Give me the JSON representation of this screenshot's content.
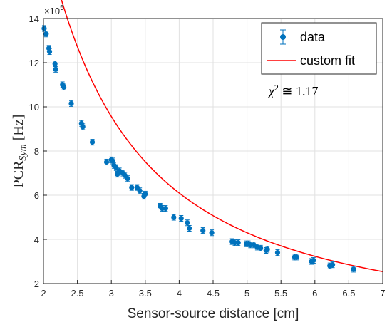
{
  "chart_data": {
    "type": "scatter",
    "xlabel": "Sensor-source distance [cm]",
    "ylabel_main": "PCR",
    "ylabel_sub": "Sym",
    "ylabel_unit": " [Hz]",
    "y_exponent": "×10",
    "y_exponent_power": "5",
    "xlim": [
      2,
      7
    ],
    "ylim": [
      2,
      14
    ],
    "xticks": [
      "2",
      "2.5",
      "3",
      "3.5",
      "4",
      "4.5",
      "5",
      "5.5",
      "6",
      "6.5",
      "7"
    ],
    "yticks": [
      "2",
      "4",
      "6",
      "8",
      "10",
      "12",
      "14"
    ],
    "grid": true,
    "legend_position": "top-right",
    "annotation_chi": "χ̄",
    "annotation_rest": " ≅  1.17",
    "annotation_power": "2",
    "colors": {
      "data": "#0072BD",
      "fit": "#ff0000",
      "grid": "#e1e1e1",
      "axis": "#262626"
    },
    "series": [
      {
        "name": "data",
        "kind": "errorbar",
        "points": [
          [
            2.01,
            13.55
          ],
          [
            2.04,
            13.3
          ],
          [
            2.08,
            12.65
          ],
          [
            2.09,
            12.5
          ],
          [
            2.17,
            11.95
          ],
          [
            2.18,
            11.7
          ],
          [
            2.28,
            11.0
          ],
          [
            2.3,
            10.9
          ],
          [
            2.41,
            10.15
          ],
          [
            2.56,
            9.25
          ],
          [
            2.58,
            9.1
          ],
          [
            2.72,
            8.4
          ],
          [
            2.93,
            7.5
          ],
          [
            3.0,
            7.6
          ],
          [
            3.02,
            7.55
          ],
          [
            3.04,
            7.35
          ],
          [
            3.07,
            7.25
          ],
          [
            3.09,
            6.95
          ],
          [
            3.12,
            7.1
          ],
          [
            3.17,
            7.0
          ],
          [
            3.2,
            6.9
          ],
          [
            3.24,
            6.75
          ],
          [
            3.3,
            6.35
          ],
          [
            3.38,
            6.35
          ],
          [
            3.42,
            6.2
          ],
          [
            3.48,
            5.95
          ],
          [
            3.5,
            6.05
          ],
          [
            3.72,
            5.5
          ],
          [
            3.75,
            5.4
          ],
          [
            3.8,
            5.4
          ],
          [
            3.92,
            5.0
          ],
          [
            4.03,
            4.95
          ],
          [
            4.12,
            4.75
          ],
          [
            4.15,
            4.5
          ],
          [
            4.35,
            4.4
          ],
          [
            4.48,
            4.3
          ],
          [
            4.78,
            3.9
          ],
          [
            4.82,
            3.85
          ],
          [
            4.87,
            3.85
          ],
          [
            4.99,
            3.8
          ],
          [
            5.02,
            3.8
          ],
          [
            5.05,
            3.75
          ],
          [
            5.1,
            3.75
          ],
          [
            5.15,
            3.65
          ],
          [
            5.2,
            3.6
          ],
          [
            5.28,
            3.5
          ],
          [
            5.3,
            3.55
          ],
          [
            5.45,
            3.4
          ],
          [
            5.7,
            3.2
          ],
          [
            5.73,
            3.2
          ],
          [
            5.95,
            3.0
          ],
          [
            5.98,
            3.05
          ],
          [
            6.22,
            2.8
          ],
          [
            6.26,
            2.85
          ],
          [
            6.57,
            2.65
          ]
        ],
        "error": 0.13
      },
      {
        "name": "custom fit",
        "kind": "curve",
        "model": "y = A / x^p",
        "A": 53.36,
        "p": 1.5646
      }
    ]
  }
}
